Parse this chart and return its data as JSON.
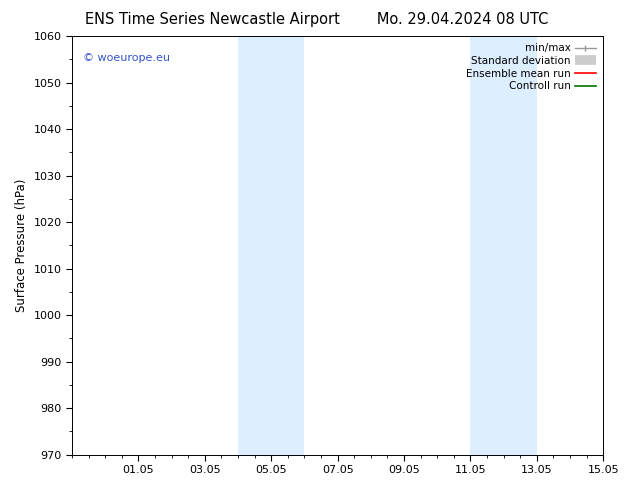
{
  "title_left": "ENS Time Series Newcastle Airport",
  "title_right": "Mo. 29.04.2024 08 UTC",
  "ylabel": "Surface Pressure (hPa)",
  "ylim": [
    970,
    1060
  ],
  "yticks": [
    970,
    980,
    990,
    1000,
    1010,
    1020,
    1030,
    1040,
    1050,
    1060
  ],
  "xlim_start": 0,
  "xlim_end": 16,
  "xtick_labels": [
    "01.05",
    "03.05",
    "05.05",
    "07.05",
    "09.05",
    "11.05",
    "13.05",
    "15.05"
  ],
  "xtick_positions": [
    2,
    4,
    6,
    8,
    10,
    12,
    14,
    16
  ],
  "shade_bands": [
    {
      "x_start": 5.0,
      "x_end": 7.0
    },
    {
      "x_start": 12.0,
      "x_end": 14.0
    }
  ],
  "shade_color": "#ddeeff",
  "background_color": "#ffffff",
  "watermark_text": "© woeurope.eu",
  "watermark_color": "#3355cc",
  "legend_items": [
    {
      "label": "min/max",
      "color": "#999999",
      "lw": 1.0,
      "style": "minmax"
    },
    {
      "label": "Standard deviation",
      "color": "#cccccc",
      "lw": 7,
      "style": "std"
    },
    {
      "label": "Ensemble mean run",
      "color": "#ff0000",
      "lw": 1.2,
      "style": "line"
    },
    {
      "label": "Controll run",
      "color": "#007700",
      "lw": 1.2,
      "style": "line"
    }
  ],
  "title_fontsize": 10.5,
  "axis_fontsize": 8.5,
  "tick_fontsize": 8,
  "legend_fontsize": 7.5
}
